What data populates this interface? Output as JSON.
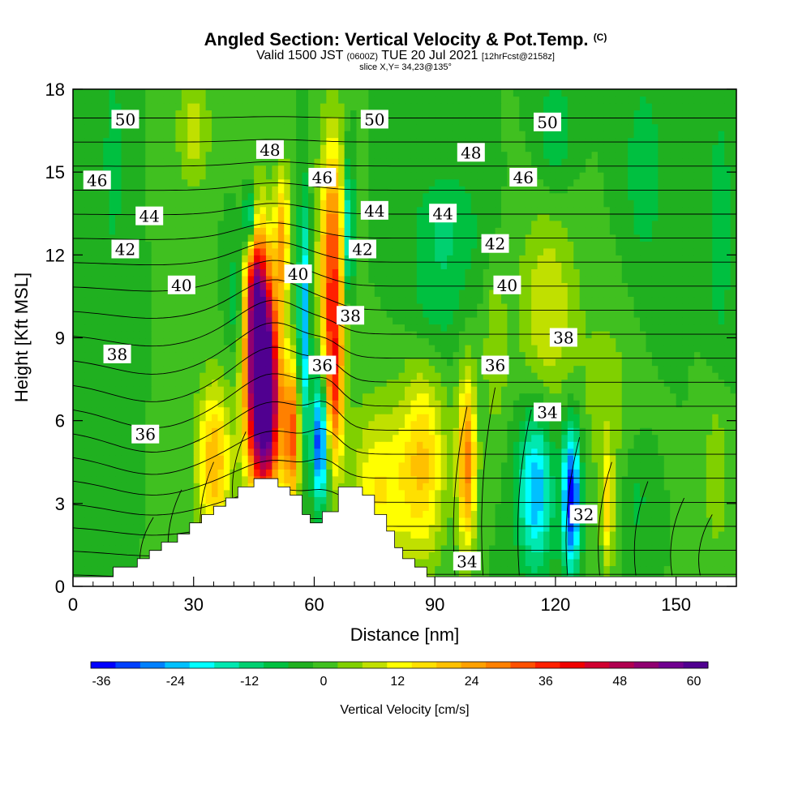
{
  "chart_data": {
    "type": "heatmap",
    "title": "Angled Section: Vertical Velocity & Pot.Temp.",
    "title_mark": "(C)",
    "subtitle": {
      "prefix": "Valid 1500 JST",
      "utc": "(0600Z)",
      "date": "TUE 20 Jul 2021",
      "forecast": "[12hrFcst@2158z]"
    },
    "slice_info": "slice X,Y= 34,23@135°",
    "xlabel": "Distance [nm]",
    "ylabel": "Height [Kft MSL]",
    "xlim": [
      0,
      165
    ],
    "ylim": [
      0,
      18
    ],
    "x_ticks": [
      0,
      30,
      60,
      90,
      120,
      150
    ],
    "y_ticks": [
      0,
      3,
      6,
      9,
      12,
      15,
      18
    ],
    "colorbar": {
      "label": "Vertical Velocity [cm/s]",
      "min": -36,
      "max": 64,
      "step": 4,
      "tick_labels": [
        -36,
        -24,
        -12,
        0,
        12,
        24,
        36,
        48,
        60
      ],
      "colors": [
        "#0000ff",
        "#0040ff",
        "#0080ff",
        "#00c0ff",
        "#00ffff",
        "#00e8b0",
        "#00d070",
        "#00c040",
        "#20b020",
        "#40c020",
        "#80d000",
        "#c0e000",
        "#ffff00",
        "#ffe000",
        "#ffc000",
        "#ffa000",
        "#ff8000",
        "#ff5000",
        "#ff2000",
        "#f00000",
        "#d00030",
        "#b00050",
        "#900070",
        "#700090",
        "#500090"
      ]
    },
    "shading_variable": "Vertical Velocity [cm/s]",
    "contour_variable": "Pot.Temp. (C)",
    "theta_contour_labels": [
      {
        "text": "50",
        "x": 13,
        "y": 16.9
      },
      {
        "text": "50",
        "x": 75,
        "y": 16.9
      },
      {
        "text": "50",
        "x": 118,
        "y": 16.8
      },
      {
        "text": "48",
        "x": 49,
        "y": 15.8
      },
      {
        "text": "48",
        "x": 99,
        "y": 15.7
      },
      {
        "text": "46",
        "x": 6,
        "y": 14.7
      },
      {
        "text": "46",
        "x": 62,
        "y": 14.8
      },
      {
        "text": "46",
        "x": 112,
        "y": 14.8
      },
      {
        "text": "44",
        "x": 19,
        "y": 13.4
      },
      {
        "text": "44",
        "x": 75,
        "y": 13.6
      },
      {
        "text": "44",
        "x": 92,
        "y": 13.5
      },
      {
        "text": "42",
        "x": 13,
        "y": 12.2
      },
      {
        "text": "42",
        "x": 72,
        "y": 12.2
      },
      {
        "text": "42",
        "x": 105,
        "y": 12.4
      },
      {
        "text": "40",
        "x": 27,
        "y": 10.9
      },
      {
        "text": "40",
        "x": 56,
        "y": 11.3
      },
      {
        "text": "40",
        "x": 108,
        "y": 10.9
      },
      {
        "text": "38",
        "x": 69,
        "y": 9.8
      },
      {
        "text": "38",
        "x": 11,
        "y": 8.4
      },
      {
        "text": "38",
        "x": 122,
        "y": 9.0
      },
      {
        "text": "36",
        "x": 62,
        "y": 8.0
      },
      {
        "text": "36",
        "x": 105,
        "y": 8.0
      },
      {
        "text": "36",
        "x": 18,
        "y": 5.5
      },
      {
        "text": "34",
        "x": 118,
        "y": 6.3
      },
      {
        "text": "34",
        "x": 98,
        "y": 0.9
      },
      {
        "text": "32",
        "x": 127,
        "y": 2.6
      }
    ],
    "vertical_velocity_cells": [
      {
        "x": 47,
        "y": 8.0,
        "sx": 2.6,
        "sy": 2.8,
        "w": 64
      },
      {
        "x": 48,
        "y": 6.0,
        "sx": 3.2,
        "sy": 2.2,
        "w": 30
      },
      {
        "x": 45,
        "y": 11.0,
        "sx": 2.0,
        "sy": 2.0,
        "w": 28
      },
      {
        "x": 44,
        "y": 13.2,
        "sx": 1.2,
        "sy": 0.9,
        "w": -28
      },
      {
        "x": 41,
        "y": 10.5,
        "sx": 1.8,
        "sy": 1.5,
        "w": -10
      },
      {
        "x": 35,
        "y": 4.5,
        "sx": 3.0,
        "sy": 2.0,
        "w": 24
      },
      {
        "x": 52,
        "y": 12.6,
        "sx": 1.3,
        "sy": 1.8,
        "w": 24
      },
      {
        "x": 54.5,
        "y": 5.5,
        "sx": 1.4,
        "sy": 1.8,
        "w": 32
      },
      {
        "x": 57.5,
        "y": 9.5,
        "sx": 1.0,
        "sy": 3.0,
        "w": -24
      },
      {
        "x": 61.5,
        "y": 5.3,
        "sx": 1.3,
        "sy": 1.6,
        "w": -36
      },
      {
        "x": 64.5,
        "y": 11.5,
        "sx": 2.2,
        "sy": 3.3,
        "w": 36
      },
      {
        "x": 65,
        "y": 7.0,
        "sx": 1.6,
        "sy": 2.0,
        "w": 24
      },
      {
        "x": 68.5,
        "y": 12.8,
        "sx": 0.9,
        "sy": 1.8,
        "w": -24
      },
      {
        "x": 76,
        "y": 3.5,
        "sx": 5.0,
        "sy": 2.2,
        "w": 16
      },
      {
        "x": 87,
        "y": 4.5,
        "sx": 4.0,
        "sy": 2.5,
        "w": 20
      },
      {
        "x": 98,
        "y": 4.5,
        "sx": 1.6,
        "sy": 2.2,
        "w": 30
      },
      {
        "x": 115,
        "y": 3.5,
        "sx": 3.0,
        "sy": 2.0,
        "w": -24
      },
      {
        "x": 124,
        "y": 3.2,
        "sx": 1.6,
        "sy": 1.8,
        "w": -36
      },
      {
        "x": 133,
        "y": 2.8,
        "sx": 1.0,
        "sy": 1.6,
        "w": 16
      },
      {
        "x": 140,
        "y": 3.2,
        "sx": 2.5,
        "sy": 1.5,
        "w": -6
      },
      {
        "x": 118,
        "y": 10.0,
        "sx": 5.0,
        "sy": 2.5,
        "w": 12
      },
      {
        "x": 133,
        "y": 6.5,
        "sx": 5.0,
        "sy": 3.0,
        "w": 6
      },
      {
        "x": 90,
        "y": 10.0,
        "sx": 5.0,
        "sy": 1.5,
        "w": -6
      },
      {
        "x": 93,
        "y": 13.0,
        "sx": 6.0,
        "sy": 1.5,
        "w": -8
      },
      {
        "x": 30,
        "y": 16.5,
        "sx": 3.0,
        "sy": 1.5,
        "w": 10
      },
      {
        "x": 10,
        "y": 15.5,
        "sx": 2.0,
        "sy": 3.0,
        "w": -6
      },
      {
        "x": 120,
        "y": 16.5,
        "sx": 3.0,
        "sy": 1.5,
        "w": -8
      },
      {
        "x": 142,
        "y": 15.0,
        "sx": 4.0,
        "sy": 3.0,
        "w": -6
      },
      {
        "x": 161,
        "y": 13.0,
        "sx": 2.0,
        "sy": 3.0,
        "w": -8
      },
      {
        "x": 160,
        "y": 4.0,
        "sx": 2.0,
        "sy": 2.0,
        "w": 8
      },
      {
        "x": 105,
        "y": 8.5,
        "sx": 2.0,
        "sy": 2.0,
        "w": 8
      }
    ],
    "terrain": [
      {
        "x": 0,
        "y": 0.35
      },
      {
        "x": 10,
        "y": 0.35
      },
      {
        "x": 10,
        "y": 0.7
      },
      {
        "x": 16,
        "y": 0.7
      },
      {
        "x": 16,
        "y": 1.0
      },
      {
        "x": 19,
        "y": 1.0
      },
      {
        "x": 19,
        "y": 1.3
      },
      {
        "x": 22,
        "y": 1.3
      },
      {
        "x": 22,
        "y": 1.6
      },
      {
        "x": 26,
        "y": 1.6
      },
      {
        "x": 26,
        "y": 1.9
      },
      {
        "x": 29,
        "y": 1.9
      },
      {
        "x": 29,
        "y": 2.3
      },
      {
        "x": 32,
        "y": 2.3
      },
      {
        "x": 32,
        "y": 2.6
      },
      {
        "x": 35,
        "y": 2.6
      },
      {
        "x": 35,
        "y": 2.9
      },
      {
        "x": 38,
        "y": 2.9
      },
      {
        "x": 38,
        "y": 3.2
      },
      {
        "x": 41,
        "y": 3.2
      },
      {
        "x": 41,
        "y": 3.6
      },
      {
        "x": 45,
        "y": 3.6
      },
      {
        "x": 45,
        "y": 3.9
      },
      {
        "x": 51,
        "y": 3.9
      },
      {
        "x": 51,
        "y": 3.6
      },
      {
        "x": 54,
        "y": 3.6
      },
      {
        "x": 54,
        "y": 3.3
      },
      {
        "x": 57,
        "y": 3.3
      },
      {
        "x": 57,
        "y": 2.6
      },
      {
        "x": 59,
        "y": 2.6
      },
      {
        "x": 59,
        "y": 2.3
      },
      {
        "x": 62,
        "y": 2.3
      },
      {
        "x": 62,
        "y": 2.7
      },
      {
        "x": 66,
        "y": 2.7
      },
      {
        "x": 66,
        "y": 3.6
      },
      {
        "x": 72,
        "y": 3.6
      },
      {
        "x": 72,
        "y": 3.3
      },
      {
        "x": 75,
        "y": 3.3
      },
      {
        "x": 75,
        "y": 2.6
      },
      {
        "x": 78,
        "y": 2.6
      },
      {
        "x": 78,
        "y": 2.0
      },
      {
        "x": 80,
        "y": 2.0
      },
      {
        "x": 80,
        "y": 1.4
      },
      {
        "x": 82,
        "y": 1.4
      },
      {
        "x": 82,
        "y": 1.0
      },
      {
        "x": 85,
        "y": 1.0
      },
      {
        "x": 85,
        "y": 0.7
      },
      {
        "x": 88,
        "y": 0.7
      },
      {
        "x": 88,
        "y": 0.35
      },
      {
        "x": 165,
        "y": 0.35
      }
    ]
  }
}
